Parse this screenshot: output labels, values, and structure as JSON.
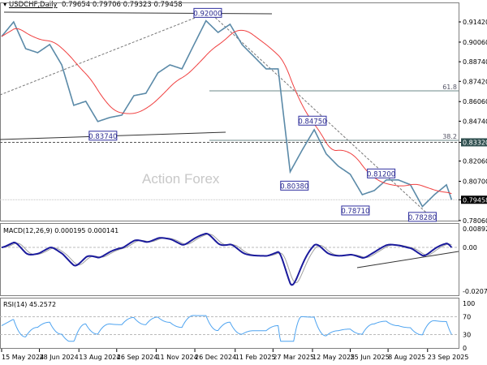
{
  "header": {
    "symbol": "USDCHF,Daily",
    "ohlc": "0.79654 0.79706 0.79323 0.79458",
    "macd_label": "MACD(12,26,9) 0.000195 0.000141",
    "rsi_label": "RSI(14) 45.2572"
  },
  "watermark": "Action Forex",
  "colors": {
    "price": "#5b8aa8",
    "ma": "#f04040",
    "macd": "#1a1a9c",
    "signal": "#a0a0a0",
    "rsi": "#4da3f0",
    "label_box": "#3030a0",
    "last_price_bg": "#000000",
    "level_bg": "#2f4f4f"
  },
  "chart_data": {
    "type": "line",
    "title": "USDCHF,Daily",
    "price_axis": {
      "ticks": [
        "0.91420",
        "0.90060",
        "0.88740",
        "0.87420",
        "0.86060",
        "0.84740",
        "0.83320",
        "0.82060",
        "0.80700",
        "0.79458",
        "0.78060"
      ],
      "range": [
        0.7806,
        0.9142
      ]
    },
    "date_ticks": [
      "15 May 2024",
      "28 Jun 2024",
      "13 Aug 2024",
      "26 Sep 2024",
      "11 Nov 2024",
      "26 Dec 2024",
      "11 Feb 2025",
      "27 Mar 2025",
      "12 May 2025",
      "25 Jun 2025",
      "8 Aug 2025",
      "23 Sep 2025"
    ],
    "date_tick_values": [
      "2024-05-15",
      "2024-06-28",
      "2024-08-13",
      "2024-09-26",
      "2024-11-11",
      "2024-12-26",
      "2025-02-11",
      "2025-03-27",
      "2025-05-12",
      "2025-06-25",
      "2025-08-08",
      "2025-09-23"
    ],
    "closes": [
      [
        "2024-05-15",
        0.9044
      ],
      [
        "2024-05-29",
        0.9142
      ],
      [
        "2024-06-12",
        0.8962
      ],
      [
        "2024-06-26",
        0.8935
      ],
      [
        "2024-07-10",
        0.899
      ],
      [
        "2024-07-24",
        0.8853
      ],
      [
        "2024-08-07",
        0.8581
      ],
      [
        "2024-08-21",
        0.8608
      ],
      [
        "2024-09-04",
        0.8472
      ],
      [
        "2024-09-18",
        0.8499
      ],
      [
        "2024-10-02",
        0.8515
      ],
      [
        "2024-10-16",
        0.8646
      ],
      [
        "2024-10-30",
        0.8662
      ],
      [
        "2024-11-13",
        0.8799
      ],
      [
        "2024-11-27",
        0.8853
      ],
      [
        "2024-12-11",
        0.8826
      ],
      [
        "2024-12-25",
        0.8989
      ],
      [
        "2025-01-08",
        0.915
      ],
      [
        "2025-01-22",
        0.9071
      ],
      [
        "2025-02-05",
        0.9126
      ],
      [
        "2025-02-19",
        0.8989
      ],
      [
        "2025-03-05",
        0.8908
      ],
      [
        "2025-03-19",
        0.8826
      ],
      [
        "2025-04-02",
        0.8826
      ],
      [
        "2025-04-16",
        0.8134
      ],
      [
        "2025-04-30",
        0.828
      ],
      [
        "2025-05-14",
        0.8417
      ],
      [
        "2025-05-28",
        0.8254
      ],
      [
        "2025-06-11",
        0.8172
      ],
      [
        "2025-06-25",
        0.8117
      ],
      [
        "2025-07-09",
        0.798
      ],
      [
        "2025-07-23",
        0.8008
      ],
      [
        "2025-08-06",
        0.8079
      ],
      [
        "2025-08-20",
        0.8079
      ],
      [
        "2025-09-03",
        0.8047
      ],
      [
        "2025-09-17",
        0.79
      ],
      [
        "2025-10-01",
        0.798
      ],
      [
        "2025-10-15",
        0.8046
      ],
      [
        "2025-10-21",
        0.79458
      ]
    ],
    "swing_labels": [
      {
        "text": "0.92000",
        "date": "2025-01-10",
        "price": 0.92
      },
      {
        "text": "0.83740",
        "date": "2024-09-10",
        "price": 0.8374
      },
      {
        "text": "0.84750",
        "date": "2025-05-12",
        "price": 0.8475
      },
      {
        "text": "0.80380",
        "date": "2025-04-21",
        "price": 0.8038
      },
      {
        "text": "0.81200",
        "date": "2025-07-31",
        "price": 0.812
      },
      {
        "text": "0.78710",
        "date": "2025-07-01",
        "price": 0.7871
      },
      {
        "text": "0.78280",
        "date": "2025-09-17",
        "price": 0.7828
      }
    ],
    "fib_levels": [
      {
        "text": "61.8",
        "price": 0.8684
      },
      {
        "text": "38.2",
        "price": 0.835
      }
    ],
    "level_line": "0.83320",
    "last_price": "0.79458",
    "macd_axis": {
      "ticks": [
        "0.008923",
        "0.00",
        "-0.020759"
      ],
      "range": [
        -0.020759,
        0.008923
      ]
    },
    "rsi_axis": {
      "ticks": [
        "100",
        "70",
        "30",
        "0"
      ],
      "range": [
        0,
        100
      ]
    }
  }
}
